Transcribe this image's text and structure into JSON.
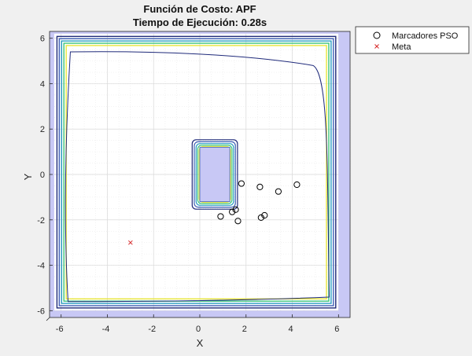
{
  "chart_data": {
    "type": "scatter",
    "title": "Función de Costo: APF",
    "subtitle": "Tiempo de Ejecución: 0.28s",
    "xlabel": "X",
    "ylabel": "Y",
    "xlim": [
      -6.5,
      6.5
    ],
    "ylim": [
      -6.3,
      6.3
    ],
    "xticks": [
      -6,
      -4,
      -2,
      0,
      2,
      4,
      6
    ],
    "yticks": [
      -6,
      -4,
      -2,
      0,
      2,
      4,
      6
    ],
    "grid": true,
    "legend_position": "outside-top-right",
    "series": [
      {
        "name": "Marcadores PSO",
        "marker": "circle",
        "color": "#000000",
        "points": [
          [
            0.9,
            -1.85
          ],
          [
            1.4,
            -1.65
          ],
          [
            1.55,
            -1.55
          ],
          [
            1.65,
            -2.05
          ],
          [
            1.8,
            -0.4
          ],
          [
            2.6,
            -0.55
          ],
          [
            2.65,
            -1.9
          ],
          [
            2.8,
            -1.8
          ],
          [
            3.4,
            -0.75
          ],
          [
            4.2,
            -0.45
          ]
        ]
      },
      {
        "name": "Meta",
        "marker": "x",
        "color": "#d62728",
        "points": [
          [
            -3.0,
            -3.0
          ]
        ]
      }
    ],
    "obstacles": [
      {
        "type": "boundary_walls",
        "x": [
          -6.3,
          6.0
        ],
        "y": [
          -6.0,
          6.2
        ],
        "fill": "#c8c8f5"
      },
      {
        "type": "rectangle",
        "x": [
          0.0,
          1.3
        ],
        "y": [
          -1.2,
          1.2
        ],
        "fill": "#c8c8f5"
      }
    ],
    "contour_colors": [
      "#1f2a7a",
      "#3e5fb5",
      "#2a9dc2",
      "#3cc57a",
      "#e8e63a"
    ]
  }
}
